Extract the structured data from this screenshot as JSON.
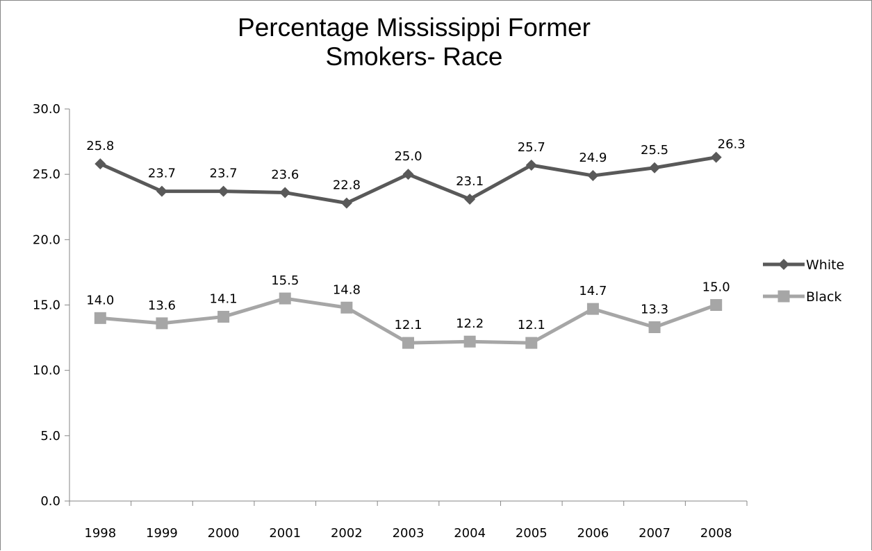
{
  "chart_data": {
    "type": "line",
    "title": "Percentage Mississippi Former Smokers- Race",
    "title_lines": [
      "Percentage Mississippi Former",
      "Smokers- Race"
    ],
    "xlabel": "",
    "ylabel": "",
    "categories": [
      "1998",
      "1999",
      "2000",
      "2001",
      "2002",
      "2003",
      "2004",
      "2005",
      "2006",
      "2007",
      "2008"
    ],
    "ylim": [
      0,
      30
    ],
    "y_ticks": [
      0,
      5,
      10,
      15,
      20,
      25,
      30
    ],
    "y_tick_labels": [
      "0.0",
      "5.0",
      "10.0",
      "15.0",
      "20.0",
      "25.0",
      "30.0"
    ],
    "grid": false,
    "legend_position": "right",
    "series": [
      {
        "name": "White",
        "color": "#595959",
        "marker": "diamond",
        "values": [
          25.8,
          23.7,
          23.7,
          23.6,
          22.8,
          25.0,
          23.1,
          25.7,
          24.9,
          25.5,
          26.3
        ],
        "labels": [
          "25.8",
          "23.7",
          "23.7",
          "23.6",
          "22.8",
          "25.0",
          "23.1",
          "25.7",
          "24.9",
          "25.5",
          "26.3"
        ]
      },
      {
        "name": "Black",
        "color": "#a6a6a6",
        "marker": "square",
        "values": [
          14.0,
          13.6,
          14.1,
          15.5,
          14.8,
          12.1,
          12.2,
          12.1,
          14.7,
          13.3,
          15.0
        ],
        "labels": [
          "14.0",
          "13.6",
          "14.1",
          "15.5",
          "14.8",
          "12.1",
          "12.2",
          "12.1",
          "14.7",
          "13.3",
          "15.0"
        ]
      }
    ]
  }
}
